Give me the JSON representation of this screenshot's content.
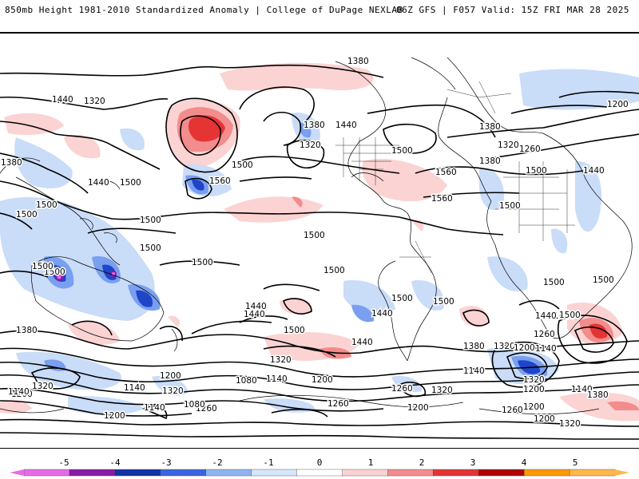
{
  "header": {
    "title_left": "850mb Height 1981-2010 Standardized Anomaly | College of DuPage NEXLAB",
    "title_right": "06Z GFS | F057 Valid: 15Z FRI MAR 28 2025"
  },
  "colorbar": {
    "ticks": [
      "-5",
      "-4",
      "-3",
      "-2",
      "-1",
      "0",
      "1",
      "2",
      "3",
      "4",
      "5"
    ],
    "colors": [
      "#e66be6",
      "#8a1aa8",
      "#1232a8",
      "#3a64e0",
      "#8fb4f0",
      "#d6e6fb",
      "#ffffff",
      "#fbd3d3",
      "#f38c8c",
      "#e53434",
      "#b00000",
      "#ff9900",
      "#ffb84d"
    ]
  },
  "contour_labels": [
    "1380",
    "1320",
    "1440",
    "1380",
    "1500",
    "1440",
    "1500",
    "1500",
    "1500",
    "1500",
    "1500",
    "1500",
    "1500",
    "1500",
    "1500",
    "1440",
    "1560",
    "1500",
    "1380",
    "1320",
    "1440",
    "1380",
    "1500",
    "1380",
    "1320",
    "1260",
    "1440",
    "1560",
    "1500",
    "1560",
    "1500",
    "1440",
    "1200",
    "1500",
    "1500",
    "1500",
    "1440",
    "1500",
    "1500",
    "1440",
    "1380",
    "1320",
    "1200",
    "1140",
    "1260",
    "1440",
    "1320",
    "1260",
    "1200",
    "1140",
    "1080",
    "1260",
    "1320",
    "1200",
    "1140",
    "1080",
    "1140",
    "1200",
    "1260",
    "1320",
    "1140",
    "1200",
    "1080",
    "1140",
    "1260",
    "1200",
    "1320",
    "1380",
    "1200",
    "1320",
    "1500",
    "1440",
    "1200",
    "1380",
    "1320",
    "1200",
    "1140"
  ]
}
